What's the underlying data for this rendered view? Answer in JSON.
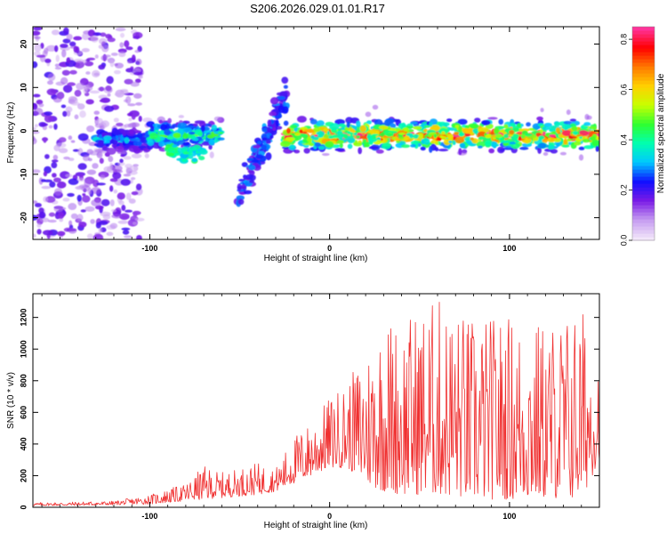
{
  "title": "S206.2026.029.01.01.R17",
  "chart_data": [
    {
      "type": "heatmap",
      "name": "spectrogram",
      "xlabel": "Height of straight line (km)",
      "ylabel": "Frequency (Hz)",
      "xlim": [
        -165,
        150
      ],
      "ylim": [
        -25,
        24
      ],
      "xticks": [
        -100,
        0,
        100
      ],
      "xtick_labels": [
        "-100",
        "0",
        "100"
      ],
      "yticks": [
        -20,
        -10,
        0,
        10,
        20
      ],
      "ytick_labels": [
        "-20",
        "-10",
        "0",
        "10",
        "20"
      ],
      "colorbar": {
        "label": "Normalized spectral amplitude",
        "range": [
          0.0,
          0.85
        ],
        "ticks": [
          0.0,
          0.2,
          0.4,
          0.6,
          0.8
        ],
        "tick_labels": [
          "0.0",
          "0.2",
          "0.4",
          "0.6",
          "0.8"
        ],
        "colors": [
          "#f2e6fa",
          "#c59bf0",
          "#7a1ae6",
          "#1010ff",
          "#00c8ff",
          "#00ffb0",
          "#30ff30",
          "#c8ff00",
          "#ffd000",
          "#ff7a00",
          "#ff0000",
          "#ff3399"
        ]
      },
      "regions": [
        {
          "label": "noise (scattered)",
          "x_range": [
            -165,
            -105
          ],
          "y_range": [
            -25,
            24
          ],
          "amplitude": [
            0.05,
            0.2
          ]
        },
        {
          "label": "band segment",
          "x_range": [
            -130,
            -100
          ],
          "center_freq": -2,
          "amplitude": [
            0.15,
            0.3
          ]
        },
        {
          "label": "band segment",
          "x_range": [
            -100,
            -60
          ],
          "center_freq": -1,
          "amplitude": [
            0.2,
            0.45
          ]
        },
        {
          "label": "band dip",
          "x_range": [
            -90,
            -70
          ],
          "center_freq": -5,
          "amplitude": [
            0.3,
            0.45
          ]
        },
        {
          "label": "rising arc",
          "x_range": [
            -50,
            -25
          ],
          "freq_range": [
            -15,
            8
          ],
          "amplitude": [
            0.15,
            0.3
          ]
        },
        {
          "label": "main band",
          "x_range": [
            -25,
            150
          ],
          "center_freq": -1,
          "amplitude": [
            0.3,
            0.85
          ]
        }
      ]
    },
    {
      "type": "line",
      "name": "snr",
      "xlabel": "Height of straight line (km)",
      "ylabel": "SNR (10 * v/v)",
      "xlim": [
        -165,
        150
      ],
      "ylim": [
        0,
        1350
      ],
      "xticks": [
        -100,
        0,
        100
      ],
      "xtick_labels": [
        "-100",
        "0",
        "100"
      ],
      "yticks": [
        0,
        200,
        400,
        600,
        800,
        1000,
        1200
      ],
      "ytick_labels": [
        "0",
        "200",
        "400",
        "600",
        "800",
        "1000",
        "1200"
      ],
      "color": "#f03030",
      "envelope": {
        "x": [
          -165,
          -140,
          -120,
          -100,
          -80,
          -70,
          -60,
          -40,
          -30,
          -20,
          -10,
          0,
          10,
          20,
          30,
          40,
          60,
          80,
          100,
          120,
          140,
          150
        ],
        "peak": [
          30,
          35,
          40,
          80,
          150,
          260,
          220,
          280,
          250,
          450,
          550,
          700,
          800,
          1000,
          1230,
          1200,
          1340,
          1200,
          1230,
          1180,
          1290,
          1000
        ],
        "floor": [
          10,
          12,
          15,
          20,
          40,
          50,
          60,
          80,
          100,
          150,
          200,
          250,
          250,
          150,
          100,
          80,
          80,
          50,
          50,
          60,
          50,
          300
        ]
      }
    }
  ]
}
